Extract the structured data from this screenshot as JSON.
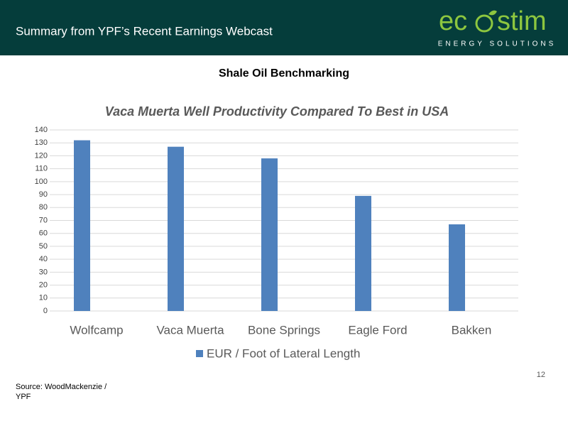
{
  "header": {
    "title": "Summary from YPF’s Recent Earnings Webcast"
  },
  "logo": {
    "left": "ec",
    "right": "stim",
    "tagline": "ENERGY SOLUTIONS"
  },
  "heading": "Shale Oil Benchmarking",
  "chart_data": {
    "type": "bar",
    "title": "Vaca Muerta Well Productivity Compared To Best in USA",
    "categories": [
      "Wolfcamp",
      "Vaca Muerta",
      "Bone Springs",
      "Eagle Ford",
      "Bakken"
    ],
    "series": [
      {
        "name": "EUR / Foot of Lateral Length",
        "color": "#4f81bd",
        "values": [
          132,
          127,
          118,
          89,
          67
        ]
      }
    ],
    "ylim": [
      0,
      140
    ],
    "yticks": [
      0,
      10,
      20,
      30,
      40,
      50,
      60,
      70,
      80,
      90,
      100,
      110,
      120,
      130,
      140
    ],
    "grid": true
  },
  "page_number": "12",
  "source": "Source: WoodMackenzie / YPF"
}
